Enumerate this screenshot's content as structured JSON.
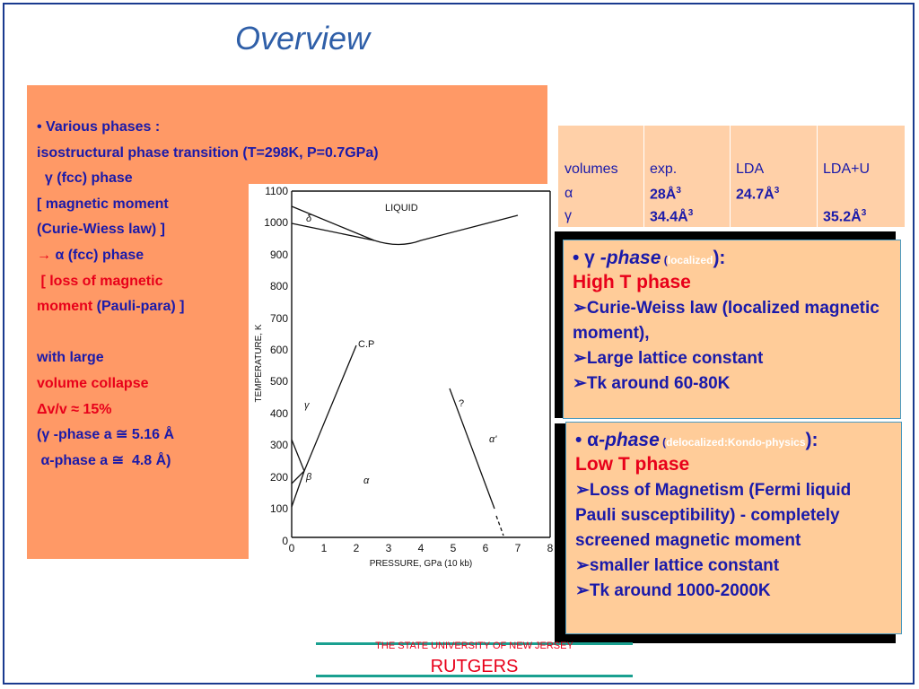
{
  "title": "Overview",
  "left_lines": [
    "• Various phases :",
    " isostructural phase transition (T=298K, P=0.7GPa)",
    "  γ (fcc) phase",
    "[ magnetic moment",
    "(Curie-Wiess law) ]",
    "→",
    " α (fcc) phase",
    " [ loss of magnetic",
    "moment",
    " (Pauli-para) ]",
    "with large",
    "volume collapse",
    "Δv/v ≈ 15%",
    "(γ -phase a ≅ 5.16 Å",
    " α-phase a ≅  4.8 Å)"
  ],
  "diagram": {
    "y_ticks": [
      "1100",
      "1000",
      "900",
      "800",
      "700",
      "600",
      "500",
      "400",
      "300",
      "200",
      "100",
      "0"
    ],
    "x_ticks": [
      "0",
      "1",
      "2",
      "3",
      "4",
      "5",
      "6",
      "7",
      "8"
    ],
    "ylabel": "TEMPERATURE, K",
    "xlabel": "PRESSURE, GPa (10 kb)",
    "labels": {
      "liquid": "LIQUID",
      "delta": "δ",
      "gamma": "γ",
      "beta": "β",
      "alpha": "α",
      "alpha_prime": "α'",
      "cp": "C.P",
      "q": "?"
    }
  },
  "volumes_table": {
    "headers": [
      "volumes",
      "exp.",
      "LDA",
      "LDA+U"
    ],
    "rows": [
      [
        "α",
        "28Å",
        "24.7Å",
        ""
      ],
      [
        "γ",
        "34.4Å",
        "",
        "35.2Å"
      ]
    ],
    "sup": "3"
  },
  "gamma_card": {
    "bullet": "• γ",
    "phase": " -phase",
    "paren_open": " (",
    "paren_word": "localized",
    "paren_close": "):",
    "hot": "High T phase",
    "items": [
      "➢Curie-Weiss law (localized magnetic moment),",
      "➢Large lattice constant",
      "➢Tk around 60-80K"
    ]
  },
  "alpha_card": {
    "bullet": "• α",
    "phase": "-phase",
    "paren_open": " (",
    "paren_word": "delocalized:Kondo-physics",
    "paren_close": "):",
    "hot": "Low T phase",
    "items": [
      "➢Loss of Magnetism (Fermi liquid Pauli susceptibility) - completely screened magnetic moment",
      "➢smaller lattice constant",
      "➢Tk around 1000-2000K"
    ]
  },
  "footer": {
    "university": "THE STATE UNIVERSITY OF NEW JERSEY",
    "name": "RUTGERS"
  }
}
